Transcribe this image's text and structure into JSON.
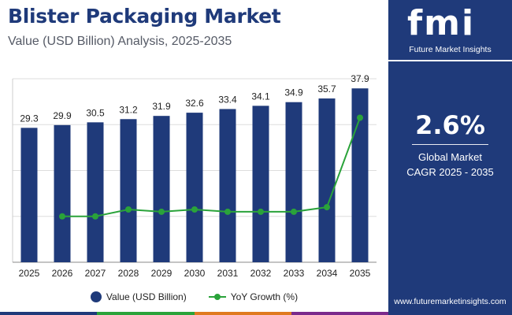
{
  "header": {
    "title": "Blister Packaging Market",
    "subtitle": "Value (USD Billion) Analysis, 2025-2035"
  },
  "brand": {
    "logo_mark": "fmi",
    "name": "Future Market Insights",
    "website": "www.futuremarketinsights.com"
  },
  "kpi": {
    "value": "2.6%",
    "label_line1": "Global Market",
    "label_line2": "CAGR 2025 - 2035"
  },
  "legend": {
    "bar_label": "Value (USD Billion)",
    "line_label": "YoY Growth (%)"
  },
  "colors": {
    "bar": "#1f3a7a",
    "line": "#2aa33a",
    "panel": "#1f3a7a",
    "grid": "#dddddd"
  },
  "chart_data": {
    "type": "bar",
    "title": "Blister Packaging Market",
    "xlabel": "",
    "ylabel": "Value (USD Billion)",
    "categories": [
      "2025",
      "2026",
      "2027",
      "2028",
      "2029",
      "2030",
      "2031",
      "2032",
      "2033",
      "2034",
      "2035"
    ],
    "series": [
      {
        "name": "Value (USD Billion)",
        "type": "bar",
        "values": [
          29.3,
          29.9,
          30.5,
          31.2,
          31.9,
          32.6,
          33.4,
          34.1,
          34.9,
          35.7,
          37.9
        ],
        "labels": [
          "29.3",
          "29.9",
          "30.5",
          "31.2",
          "31.9",
          "32.6",
          "33.4",
          "34.1",
          "34.9",
          "35.7",
          "37.9"
        ]
      },
      {
        "name": "YoY Growth (%)",
        "type": "line",
        "x": [
          "2026",
          "2027",
          "2028",
          "2029",
          "2030",
          "2031",
          "2032",
          "2033",
          "2034",
          "2035"
        ],
        "values": [
          2.0,
          2.0,
          2.3,
          2.2,
          2.3,
          2.2,
          2.2,
          2.2,
          2.4,
          6.3
        ]
      }
    ],
    "ylim": [
      0,
      40
    ],
    "y2lim": [
      0,
      8
    ],
    "grid": true,
    "legend": "bottom-center"
  }
}
